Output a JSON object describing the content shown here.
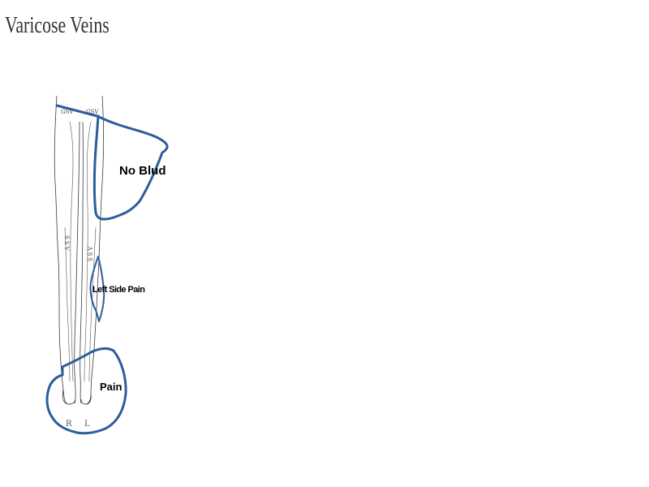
{
  "title": "Varicose Veins",
  "diagram": {
    "vein_labels": {
      "gsv_right": "GSV",
      "gsv_left": "GSV",
      "ssv_right": "SSV",
      "ssv_left": "SSV"
    },
    "side_labels": {
      "right": "R",
      "left": "L"
    },
    "annotations": [
      {
        "label": "No  Blud",
        "color": "#2c5d9b"
      },
      {
        "label": "Left Side Pain",
        "color": "#2c5d9b"
      },
      {
        "label": "Pain",
        "color": "#2c5d9b"
      }
    ]
  }
}
